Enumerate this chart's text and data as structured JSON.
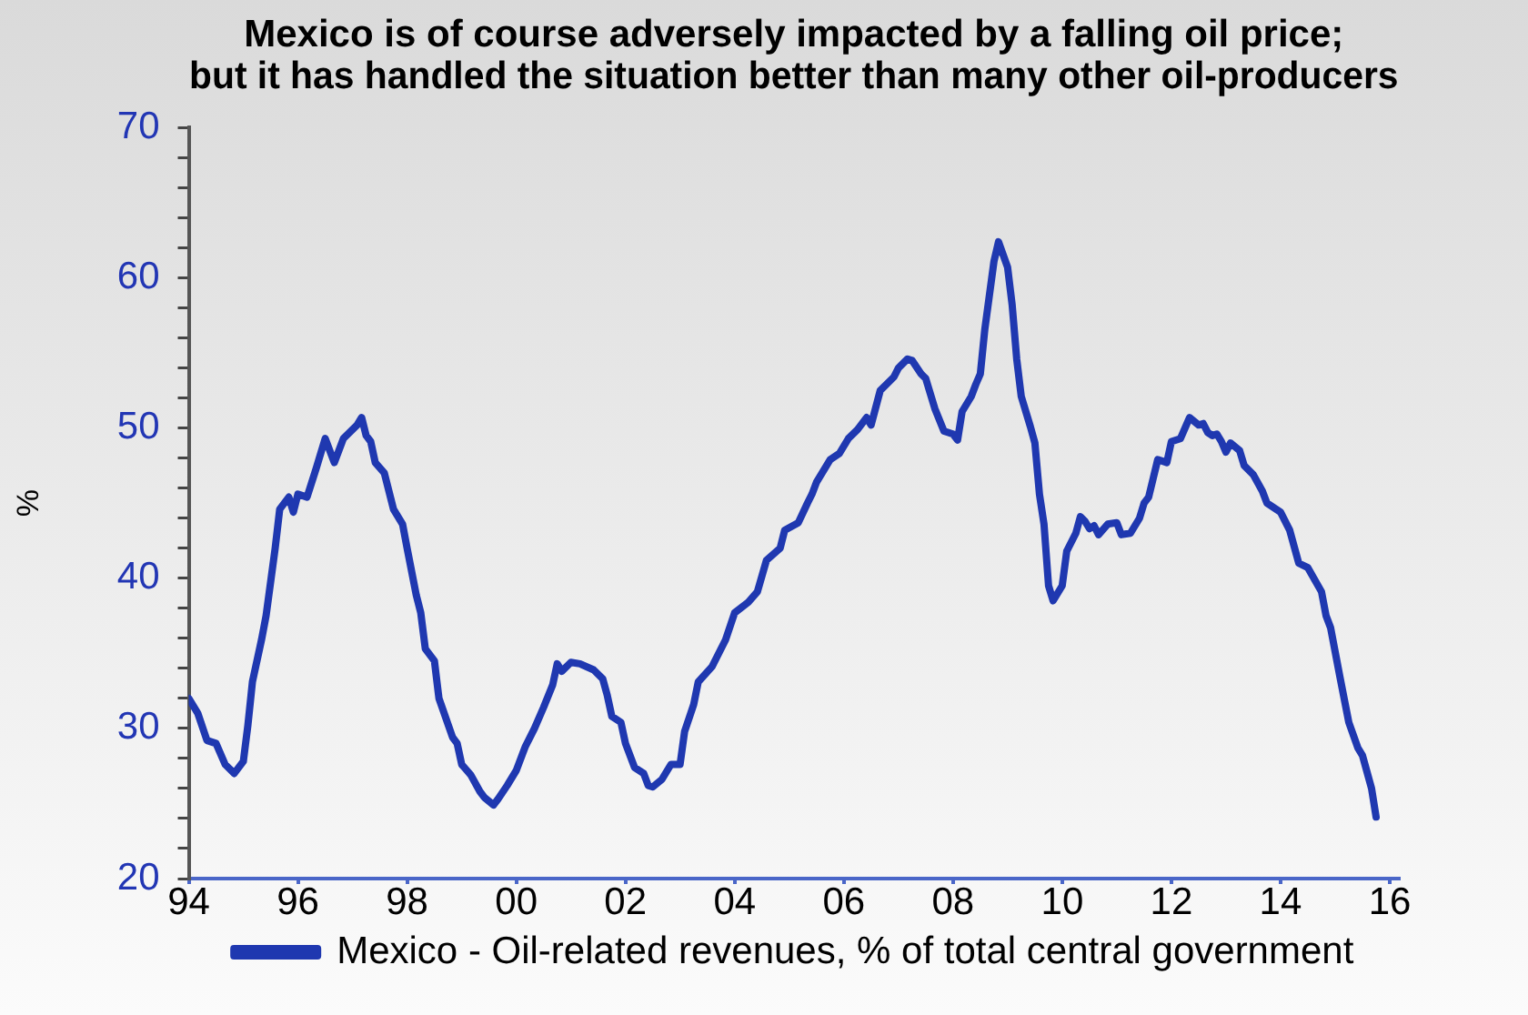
{
  "chart_data": {
    "type": "line",
    "title": "Mexico is of course adversely impacted by a falling oil price;\nbut it has handled the situation better than many other oil-producers",
    "ylabel": "%",
    "x": [
      "1994-01",
      "1994-03",
      "1994-05",
      "1994-07",
      "1994-09",
      "1994-11",
      "1995-01",
      "1995-02",
      "1995-03",
      "1995-05",
      "1995-06",
      "1995-08",
      "1995-09",
      "1995-11",
      "1995-12",
      "1996-01",
      "1996-03",
      "1996-05",
      "1996-07",
      "1996-09",
      "1996-11",
      "1997-02",
      "1997-03",
      "1997-04",
      "1997-05",
      "1997-06",
      "1997-08",
      "1997-10",
      "1997-12",
      "1998-01",
      "1998-03",
      "1998-04",
      "1998-05",
      "1998-07",
      "1998-08",
      "1998-11",
      "1998-12",
      "1999-01",
      "1999-03",
      "1999-05",
      "1999-06",
      "1999-08",
      "1999-09",
      "1999-11",
      "2000-01",
      "2000-03",
      "2000-05",
      "2000-07",
      "2000-09",
      "2000-10",
      "2000-11",
      "2001-01",
      "2001-03",
      "2001-06",
      "2001-08",
      "2001-09",
      "2001-10",
      "2001-12",
      "2002-01",
      "2002-03",
      "2002-05",
      "2002-06",
      "2002-07",
      "2002-09",
      "2002-11",
      "2003-01",
      "2003-02",
      "2003-04",
      "2003-05",
      "2003-08",
      "2003-11",
      "2004-01",
      "2004-04",
      "2004-06",
      "2004-08",
      "2004-11",
      "2004-12",
      "2005-03",
      "2005-05",
      "2005-06",
      "2005-07",
      "2005-10",
      "2005-12",
      "2006-02",
      "2006-04",
      "2006-06",
      "2006-07",
      "2006-09",
      "2006-12",
      "2007-01",
      "2007-03",
      "2007-04",
      "2007-06",
      "2007-07",
      "2007-09",
      "2007-11",
      "2008-01",
      "2008-02",
      "2008-03",
      "2008-05",
      "2008-06",
      "2008-07",
      "2008-08",
      "2008-10",
      "2008-11",
      "2009-01",
      "2009-02",
      "2009-03",
      "2009-04",
      "2009-06",
      "2009-07",
      "2009-08",
      "2009-09",
      "2009-10",
      "2009-11",
      "2010-01",
      "2010-02",
      "2010-04",
      "2010-05",
      "2010-06",
      "2010-07",
      "2010-08",
      "2010-09",
      "2010-11",
      "2011-01",
      "2011-02",
      "2011-04",
      "2011-06",
      "2011-07",
      "2011-08",
      "2011-10",
      "2011-12",
      "2012-01",
      "2012-03",
      "2012-05",
      "2012-07",
      "2012-08",
      "2012-09",
      "2012-10",
      "2012-11",
      "2012-12",
      "2013-01",
      "2013-02",
      "2013-04",
      "2013-05",
      "2013-07",
      "2013-09",
      "2013-10",
      "2014-01",
      "2014-03",
      "2014-05",
      "2014-07",
      "2014-10",
      "2014-11",
      "2014-12",
      "2015-02",
      "2015-04",
      "2015-06",
      "2015-07",
      "2015-09",
      "2015-10"
    ],
    "series": [
      {
        "name": "Mexico - Oil-related revenues, % of total central government",
        "color": "#1f38b0",
        "values": [
          32.0,
          31.0,
          29.2,
          29.0,
          27.6,
          27.0,
          27.8,
          30.2,
          33.1,
          35.9,
          37.5,
          42.0,
          44.6,
          45.4,
          44.4,
          45.6,
          45.4,
          47.3,
          49.3,
          47.7,
          49.3,
          50.2,
          50.7,
          49.5,
          49.1,
          47.7,
          47.0,
          44.6,
          43.6,
          42.0,
          38.9,
          37.7,
          35.3,
          34.5,
          32.0,
          29.4,
          29.0,
          27.6,
          26.9,
          25.8,
          25.4,
          24.9,
          25.3,
          26.2,
          27.2,
          28.8,
          30.0,
          31.4,
          32.9,
          34.3,
          33.8,
          34.4,
          34.3,
          33.9,
          33.3,
          32.2,
          30.8,
          30.4,
          29.0,
          27.4,
          27.0,
          26.2,
          26.1,
          26.6,
          27.6,
          27.6,
          29.8,
          31.6,
          33.1,
          34.1,
          35.9,
          37.7,
          38.4,
          39.1,
          41.2,
          42.0,
          43.2,
          43.7,
          45.0,
          45.6,
          46.4,
          47.9,
          48.3,
          49.3,
          49.9,
          50.7,
          50.2,
          52.5,
          53.4,
          54.0,
          54.6,
          54.5,
          53.6,
          53.3,
          51.3,
          49.8,
          49.6,
          49.2,
          51.1,
          52.1,
          52.9,
          53.6,
          56.6,
          61.1,
          62.4,
          60.7,
          58.2,
          54.6,
          52.1,
          50.1,
          49.0,
          45.6,
          43.6,
          39.5,
          38.5,
          39.5,
          41.8,
          43.0,
          44.1,
          43.8,
          43.3,
          43.5,
          42.9,
          43.6,
          43.7,
          42.9,
          43.0,
          44.0,
          45.0,
          45.4,
          47.9,
          47.7,
          49.1,
          49.3,
          50.7,
          50.2,
          50.3,
          49.7,
          49.5,
          49.6,
          49.1,
          48.4,
          49.0,
          48.5,
          47.5,
          46.9,
          45.8,
          45.0,
          44.4,
          43.2,
          41.0,
          40.7,
          39.1,
          37.5,
          36.7,
          33.5,
          30.4,
          28.7,
          28.2,
          26.0,
          24.1
        ]
      }
    ],
    "xlim": [
      "1994-01",
      "2016-03"
    ],
    "xticks": [
      {
        "value": "1994",
        "label": "94"
      },
      {
        "value": "1996",
        "label": "96"
      },
      {
        "value": "1998",
        "label": "98"
      },
      {
        "value": "2000",
        "label": "00"
      },
      {
        "value": "2002",
        "label": "02"
      },
      {
        "value": "2004",
        "label": "04"
      },
      {
        "value": "2006",
        "label": "06"
      },
      {
        "value": "2008",
        "label": "08"
      },
      {
        "value": "2010",
        "label": "10"
      },
      {
        "value": "2012",
        "label": "12"
      },
      {
        "value": "2014",
        "label": "14"
      },
      {
        "value": "2016",
        "label": "16"
      }
    ],
    "ylim": [
      20,
      70
    ],
    "yticks": [
      20,
      {
        "value": 22,
        "label": null
      },
      {
        "value": 24,
        "label": null
      },
      {
        "value": 26,
        "label": null
      },
      {
        "value": 28,
        "label": null
      },
      30,
      {
        "value": 32,
        "label": null
      },
      {
        "value": 34,
        "label": null
      },
      {
        "value": 36,
        "label": null
      },
      {
        "value": 38,
        "label": null
      },
      40,
      {
        "value": 42,
        "label": null
      },
      {
        "value": 44,
        "label": null
      },
      {
        "value": 46,
        "label": null
      },
      {
        "value": 48,
        "label": null
      },
      50,
      {
        "value": 52,
        "label": null
      },
      {
        "value": 54,
        "label": null
      },
      {
        "value": 56,
        "label": null
      },
      {
        "value": 58,
        "label": null
      },
      60,
      {
        "value": 62,
        "label": null
      },
      {
        "value": 64,
        "label": null
      },
      {
        "value": 66,
        "label": null
      },
      {
        "value": 68,
        "label": null
      },
      70
    ],
    "legend": "bottom",
    "marker": "none",
    "line_style": "solid"
  }
}
